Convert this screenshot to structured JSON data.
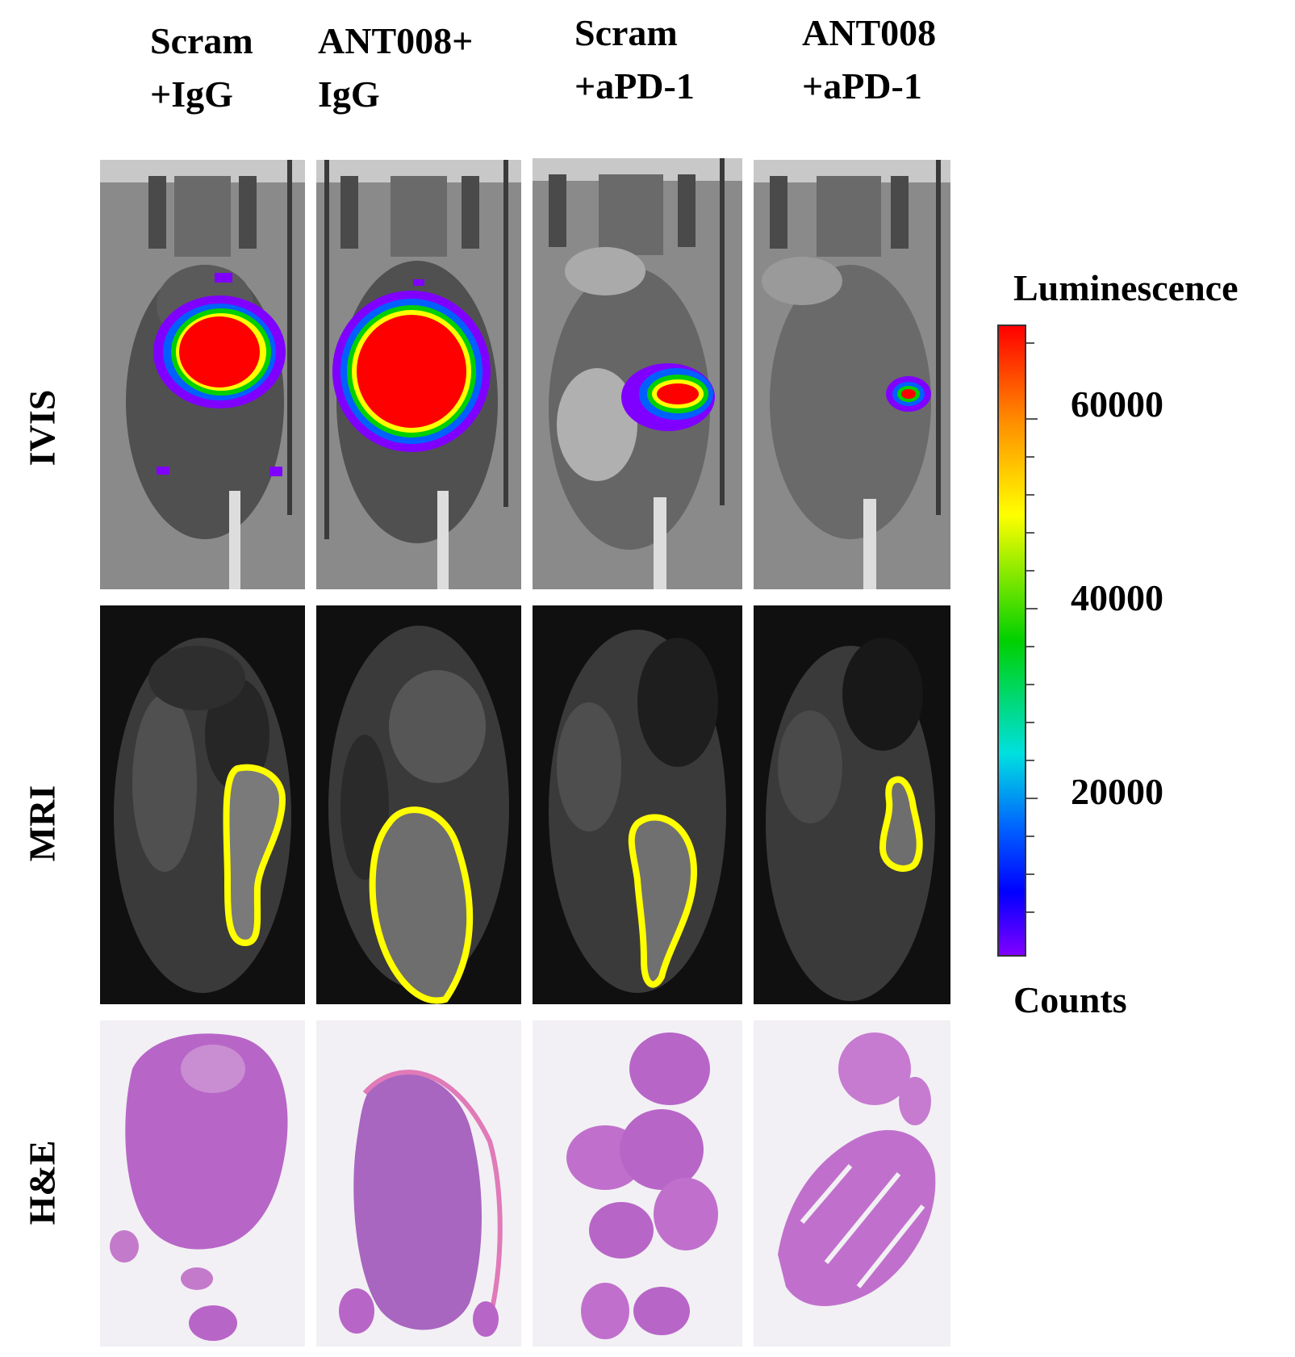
{
  "figure": {
    "columns": [
      {
        "line1": "Scram",
        "line2": "+IgG"
      },
      {
        "line1": "ANT008+",
        "line2": "IgG"
      },
      {
        "line1": "Scram",
        "line2": "+aPD-1"
      },
      {
        "line1": "ANT008",
        "line2": "+aPD-1"
      }
    ],
    "rows": [
      "IVIS",
      "MRI",
      "H&E"
    ]
  },
  "colorbar": {
    "title": "Luminescence",
    "units": "Counts",
    "ticks": [
      "60000",
      "40000",
      "20000"
    ],
    "colors": [
      "#ff0000",
      "#ff8c00",
      "#ffff00",
      "#00d000",
      "#00e0e0",
      "#0060ff",
      "#0000ff",
      "#8000ff"
    ]
  },
  "colors": {
    "tumor_outline": "#ffff00",
    "he_tissue": "#b865c8",
    "he_background": "#f2f0f4"
  }
}
